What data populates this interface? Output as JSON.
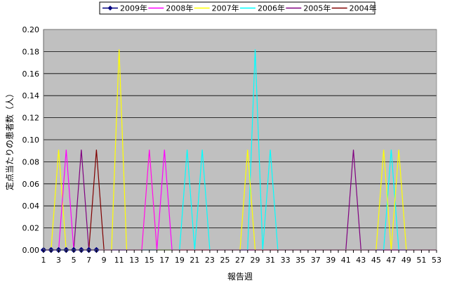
{
  "chart_data": {
    "type": "line",
    "title": "",
    "xlabel": "報告週",
    "ylabel": "定点当たりの患者数（人）",
    "ylim": [
      0,
      0.2
    ],
    "yticks": [
      0,
      0.02,
      0.04,
      0.06,
      0.08,
      0.1,
      0.12,
      0.14,
      0.16,
      0.18,
      0.2
    ],
    "ytick_labels": [
      "0.00",
      "0.02",
      "0.04",
      "0.06",
      "0.08",
      "0.10",
      "0.12",
      "0.14",
      "0.16",
      "0.18",
      "0.20"
    ],
    "xlim": [
      1,
      53
    ],
    "xtick_labels": [
      "1",
      "3",
      "5",
      "7",
      "9",
      "11",
      "13",
      "15",
      "17",
      "19",
      "21",
      "23",
      "25",
      "27",
      "29",
      "31",
      "33",
      "35",
      "37",
      "39",
      "41",
      "43",
      "45",
      "47",
      "49",
      "51",
      "53"
    ],
    "grid": true,
    "legend_position": "top",
    "plot_background": "#c0c0c0",
    "series": [
      {
        "name": "2009年",
        "color": "#000080",
        "marker": "diamond",
        "x": [
          1,
          2,
          3,
          4,
          5,
          6,
          7,
          8
        ],
        "y": [
          0,
          0,
          0,
          0,
          0,
          0,
          0,
          0
        ]
      },
      {
        "name": "2008年",
        "color": "#ff00ff",
        "x": [
          1,
          2,
          3,
          4,
          5,
          6,
          7,
          8,
          9,
          10,
          11,
          12,
          13,
          14,
          15,
          16,
          17,
          18,
          19,
          20,
          21,
          22,
          23,
          24,
          25,
          26,
          27,
          28,
          29,
          30,
          31,
          32,
          33,
          34,
          35,
          36,
          37,
          38,
          39,
          40,
          41,
          42,
          43,
          44,
          45,
          46,
          47,
          48,
          49,
          50,
          51,
          52,
          53
        ],
        "y": [
          0,
          0,
          0,
          0.091,
          0,
          0,
          0,
          0,
          0,
          0,
          0,
          0,
          0,
          0,
          0.091,
          0,
          0.091,
          0,
          0,
          0,
          0,
          0,
          0,
          0,
          0,
          0,
          0,
          0,
          0,
          0,
          0,
          0,
          0,
          0,
          0,
          0,
          0,
          0,
          0,
          0,
          0,
          0,
          0,
          0,
          0,
          0,
          0,
          0,
          0,
          0,
          0,
          0,
          0
        ]
      },
      {
        "name": "2007年",
        "color": "#ffff00",
        "x": [
          1,
          2,
          3,
          4,
          5,
          6,
          7,
          8,
          9,
          10,
          11,
          12,
          13,
          14,
          15,
          16,
          17,
          18,
          19,
          20,
          21,
          22,
          23,
          24,
          25,
          26,
          27,
          28,
          29,
          30,
          31,
          32,
          33,
          34,
          35,
          36,
          37,
          38,
          39,
          40,
          41,
          42,
          43,
          44,
          45,
          46,
          47,
          48,
          49,
          50,
          51,
          52,
          53
        ],
        "y": [
          0,
          0,
          0.091,
          0,
          0,
          0,
          0,
          0,
          0,
          0,
          0.182,
          0,
          0,
          0,
          0.091,
          0,
          0,
          0,
          0,
          0,
          0,
          0,
          0,
          0,
          0,
          0,
          0,
          0.091,
          0,
          0,
          0,
          0,
          0,
          0,
          0,
          0,
          0,
          0,
          0,
          0,
          0,
          0,
          0,
          0,
          0,
          0.091,
          0,
          0.091,
          0,
          0,
          0,
          0,
          0
        ]
      },
      {
        "name": "2006年",
        "color": "#00ffff",
        "x": [
          1,
          2,
          3,
          4,
          5,
          6,
          7,
          8,
          9,
          10,
          11,
          12,
          13,
          14,
          15,
          16,
          17,
          18,
          19,
          20,
          21,
          22,
          23,
          24,
          25,
          26,
          27,
          28,
          29,
          30,
          31,
          32,
          33,
          34,
          35,
          36,
          37,
          38,
          39,
          40,
          41,
          42,
          43,
          44,
          45,
          46,
          47,
          48,
          49,
          50,
          51,
          52,
          53
        ],
        "y": [
          0,
          0,
          0,
          0,
          0,
          0,
          0,
          0,
          0,
          0,
          0,
          0,
          0,
          0,
          0,
          0,
          0,
          0,
          0,
          0.091,
          0,
          0.091,
          0,
          0,
          0,
          0,
          0,
          0,
          0.182,
          0,
          0.091,
          0,
          0,
          0,
          0,
          0,
          0,
          0,
          0,
          0,
          0,
          0,
          0,
          0,
          0,
          0,
          0.091,
          0,
          0,
          0,
          0,
          0,
          0
        ]
      },
      {
        "name": "2005年",
        "color": "#800080",
        "x": [
          1,
          2,
          3,
          4,
          5,
          6,
          7,
          8,
          9,
          10,
          11,
          12,
          13,
          14,
          15,
          16,
          17,
          18,
          19,
          20,
          21,
          22,
          23,
          24,
          25,
          26,
          27,
          28,
          29,
          30,
          31,
          32,
          33,
          34,
          35,
          36,
          37,
          38,
          39,
          40,
          41,
          42,
          43,
          44,
          45,
          46,
          47,
          48,
          49,
          50,
          51,
          52,
          53
        ],
        "y": [
          0,
          0,
          0,
          0,
          0,
          0.091,
          0,
          0,
          0,
          0,
          0,
          0,
          0,
          0,
          0,
          0,
          0,
          0,
          0,
          0,
          0,
          0,
          0,
          0,
          0,
          0,
          0,
          0,
          0,
          0,
          0,
          0,
          0,
          0,
          0,
          0,
          0,
          0,
          0,
          0,
          0,
          0.091,
          0,
          0,
          0,
          0,
          0,
          0,
          0,
          0,
          0,
          0,
          0
        ]
      },
      {
        "name": "2004年",
        "color": "#800000",
        "x": [
          1,
          2,
          3,
          4,
          5,
          6,
          7,
          8,
          9,
          10,
          11,
          12,
          13,
          14,
          15,
          16,
          17,
          18,
          19,
          20,
          21,
          22,
          23,
          24,
          25,
          26,
          27,
          28,
          29,
          30,
          31,
          32,
          33,
          34,
          35,
          36,
          37,
          38,
          39,
          40,
          41,
          42,
          43,
          44,
          45,
          46,
          47,
          48,
          49,
          50,
          51,
          52,
          53
        ],
        "y": [
          0,
          0,
          0,
          0,
          0,
          0,
          0,
          0.091,
          0,
          0,
          0,
          0,
          0,
          0,
          0,
          0,
          0,
          0,
          0,
          0,
          0,
          0,
          0,
          0,
          0,
          0,
          0,
          0,
          0,
          0,
          0,
          0,
          0,
          0,
          0,
          0,
          0,
          0,
          0,
          0,
          0,
          0,
          0,
          0,
          0,
          0,
          0,
          0,
          0,
          0,
          0,
          0,
          0
        ]
      }
    ]
  }
}
